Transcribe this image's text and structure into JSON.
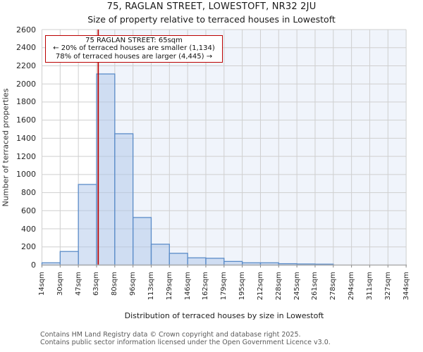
{
  "chart_data": {
    "type": "bar",
    "title": "75, RAGLAN STREET, LOWESTOFT, NR32 2JU",
    "subtitle": "Size of property relative to terraced houses in Lowestoft",
    "xlabel": "Distribution of terraced houses by size in Lowestoft",
    "ylabel": "Number of terraced properties",
    "bin_edges_sqm": [
      14,
      30,
      47,
      63,
      80,
      96,
      113,
      129,
      146,
      162,
      179,
      195,
      212,
      228,
      245,
      261,
      278,
      294,
      311,
      327,
      344
    ],
    "categories": [
      "14sqm",
      "30sqm",
      "47sqm",
      "63sqm",
      "80sqm",
      "96sqm",
      "113sqm",
      "129sqm",
      "146sqm",
      "162sqm",
      "179sqm",
      "195sqm",
      "212sqm",
      "228sqm",
      "245sqm",
      "261sqm",
      "278sqm",
      "294sqm",
      "311sqm",
      "327sqm",
      "344sqm"
    ],
    "values": [
      25,
      150,
      890,
      2110,
      1450,
      525,
      230,
      130,
      80,
      75,
      40,
      25,
      25,
      15,
      12,
      10,
      0,
      0,
      0,
      0
    ],
    "y_ticks": [
      0,
      200,
      400,
      600,
      800,
      1000,
      1200,
      1400,
      1600,
      1800,
      2000,
      2200,
      2400,
      2600
    ],
    "ylim": [
      0,
      2600
    ],
    "grid": true,
    "legend": null,
    "marker": {
      "sqm": 65,
      "label": "75 RAGLAN STREET: 65sqm"
    },
    "highlight_from_sqm": 65,
    "annotation": {
      "line1": "75 RAGLAN STREET: 65sqm",
      "line2": "← 20% of terraced houses are smaller (1,134)",
      "line3": "78% of terraced houses are larger (4,445) →"
    },
    "colors": {
      "bar_fill": "rgba(173,197,233,0.5)",
      "bar_edge": "#5b8cc8",
      "marker_line": "#bb0000",
      "highlight": "#f0f4fb",
      "grid": "#cfcfcf",
      "axis": "#aeaeae",
      "tick": "#888888"
    }
  },
  "footer": {
    "line1": "Contains HM Land Registry data © Crown copyright and database right 2025.",
    "line2": "Contains public sector information licensed under the Open Government Licence v3.0."
  }
}
